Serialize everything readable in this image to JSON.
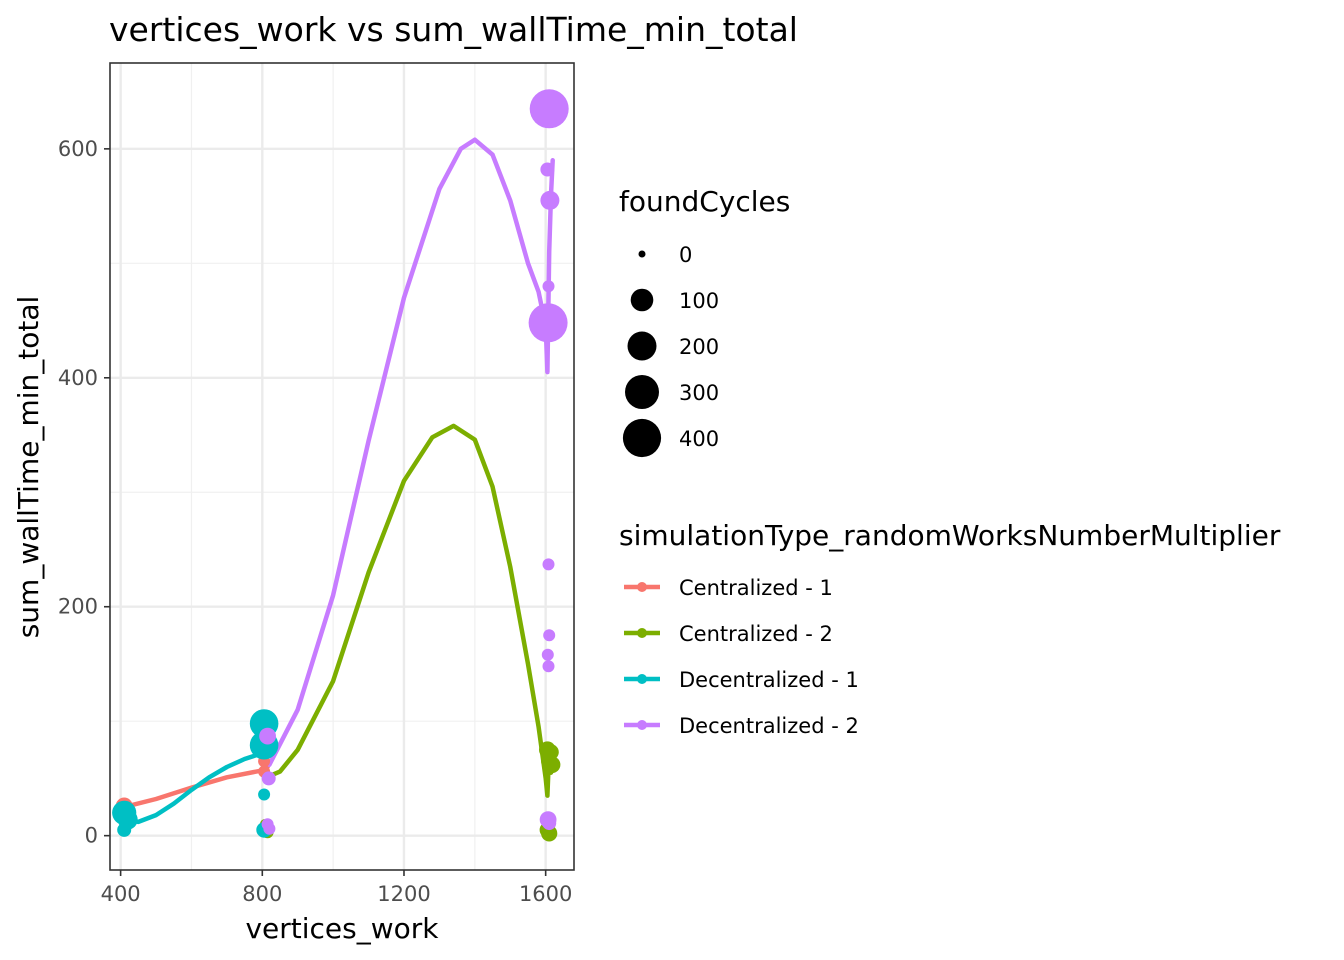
{
  "chart_data": {
    "type": "scatter",
    "title": "vertices_work  vs  sum_wallTime_min_total",
    "xlabel": "vertices_work",
    "ylabel": "sum_wallTime_min_total",
    "xlim": [
      370,
      1680
    ],
    "ylim": [
      -30,
      675
    ],
    "x_ticks": [
      400,
      800,
      1200,
      1600
    ],
    "x_tick_labels": [
      "400",
      "800",
      "1200",
      "1600"
    ],
    "y_ticks": [
      0,
      200,
      400,
      600
    ],
    "y_tick_labels": [
      "0",
      "200",
      "400",
      "600"
    ],
    "grid": true,
    "legend_position": "right",
    "size_legend": {
      "title": "foundCycles",
      "values": [
        0,
        100,
        200,
        300,
        400
      ],
      "labels": [
        "0",
        "100",
        "200",
        "300",
        "400"
      ]
    },
    "color_legend": {
      "title": "simulationType_randomWorksNumberMultiplier"
    },
    "series": [
      {
        "name": "Centralized - 1",
        "color": "#F8766D",
        "points": [
          {
            "x": 410,
            "y": 26,
            "size": 40
          },
          {
            "x": 408,
            "y": 22,
            "size": 20
          },
          {
            "x": 805,
            "y": 88,
            "size": 20
          },
          {
            "x": 805,
            "y": 65,
            "size": 10
          },
          {
            "x": 805,
            "y": 56,
            "size": 10
          }
        ],
        "smooth": [
          [
            410,
            25
          ],
          [
            500,
            32
          ],
          [
            600,
            42
          ],
          [
            700,
            51
          ],
          [
            800,
            57
          ],
          [
            815,
            60
          ]
        ]
      },
      {
        "name": "Centralized - 2",
        "color": "#7CAE00",
        "points": [
          {
            "x": 808,
            "y": 10,
            "size": 5
          },
          {
            "x": 812,
            "y": 5,
            "size": 20
          },
          {
            "x": 815,
            "y": 3,
            "size": 10
          },
          {
            "x": 1605,
            "y": 75,
            "size": 40
          },
          {
            "x": 1615,
            "y": 73,
            "size": 30
          },
          {
            "x": 1610,
            "y": 65,
            "size": 35
          },
          {
            "x": 1618,
            "y": 62,
            "size": 40
          },
          {
            "x": 1605,
            "y": 5,
            "size": 30
          },
          {
            "x": 1610,
            "y": 2,
            "size": 35
          }
        ],
        "smooth": [
          [
            820,
            52
          ],
          [
            850,
            56
          ],
          [
            900,
            75
          ],
          [
            1000,
            135
          ],
          [
            1100,
            230
          ],
          [
            1200,
            310
          ],
          [
            1280,
            348
          ],
          [
            1340,
            358
          ],
          [
            1400,
            346
          ],
          [
            1450,
            305
          ],
          [
            1500,
            235
          ],
          [
            1550,
            150
          ],
          [
            1580,
            95
          ],
          [
            1600,
            50
          ],
          [
            1605,
            35
          ],
          [
            1610,
            75
          ],
          [
            1615,
            55
          ]
        ]
      },
      {
        "name": "Decentralized - 1",
        "color": "#00BFC4",
        "points": [
          {
            "x": 410,
            "y": 20,
            "size": 120
          },
          {
            "x": 420,
            "y": 14,
            "size": 70
          },
          {
            "x": 410,
            "y": 5,
            "size": 20
          },
          {
            "x": 805,
            "y": 98,
            "size": 190
          },
          {
            "x": 805,
            "y": 79,
            "size": 190
          },
          {
            "x": 805,
            "y": 36,
            "size": 10
          },
          {
            "x": 805,
            "y": 5,
            "size": 30
          }
        ],
        "smooth": [
          [
            410,
            15
          ],
          [
            450,
            12
          ],
          [
            500,
            18
          ],
          [
            550,
            28
          ],
          [
            600,
            40
          ],
          [
            650,
            51
          ],
          [
            700,
            60
          ],
          [
            750,
            67
          ],
          [
            800,
            72
          ],
          [
            820,
            76
          ]
        ]
      },
      {
        "name": "Decentralized - 2",
        "color": "#C77CFF",
        "points": [
          {
            "x": 1610,
            "y": 635,
            "size": 420
          },
          {
            "x": 1605,
            "y": 582,
            "size": 20
          },
          {
            "x": 1612,
            "y": 555,
            "size": 60
          },
          {
            "x": 1608,
            "y": 480,
            "size": 10
          },
          {
            "x": 1607,
            "y": 448,
            "size": 420
          },
          {
            "x": 1608,
            "y": 237,
            "size": 10
          },
          {
            "x": 1610,
            "y": 175,
            "size": 10
          },
          {
            "x": 1606,
            "y": 158,
            "size": 10
          },
          {
            "x": 1608,
            "y": 148,
            "size": 10
          },
          {
            "x": 1607,
            "y": 14,
            "size": 40
          },
          {
            "x": 1610,
            "y": 11,
            "size": 20
          },
          {
            "x": 815,
            "y": 87,
            "size": 40
          },
          {
            "x": 818,
            "y": 50,
            "size": 20
          },
          {
            "x": 815,
            "y": 10,
            "size": 10
          },
          {
            "x": 820,
            "y": 6,
            "size": 10
          }
        ],
        "smooth": [
          [
            820,
            62
          ],
          [
            900,
            110
          ],
          [
            1000,
            210
          ],
          [
            1100,
            345
          ],
          [
            1200,
            470
          ],
          [
            1300,
            565
          ],
          [
            1360,
            600
          ],
          [
            1400,
            608
          ],
          [
            1450,
            595
          ],
          [
            1500,
            555
          ],
          [
            1550,
            500
          ],
          [
            1580,
            475
          ],
          [
            1600,
            445
          ],
          [
            1605,
            405
          ],
          [
            1610,
            510
          ],
          [
            1615,
            560
          ],
          [
            1620,
            590
          ]
        ]
      }
    ]
  }
}
